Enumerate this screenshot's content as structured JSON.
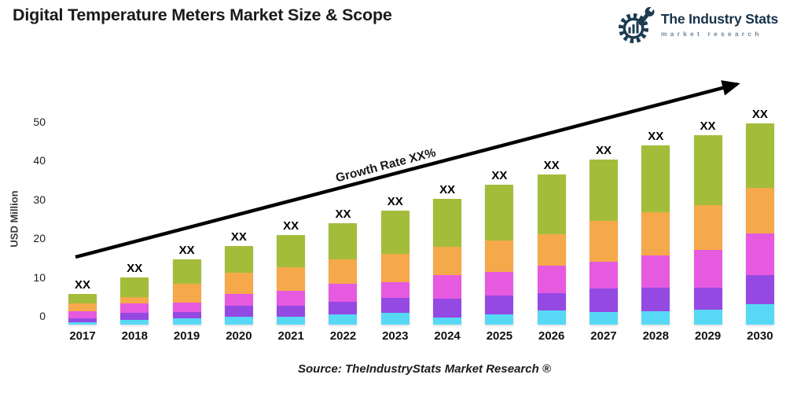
{
  "header": {
    "title": "Digital Temperature Meters Market Size & Scope",
    "logo": {
      "name": "The Industry Stats",
      "subtitle": "market research",
      "brand_color": "#1d3b50"
    }
  },
  "chart_data": {
    "type": "bar",
    "stacked": true,
    "title": "Digital Temperature Meters Market Size & Scope",
    "xlabel": "",
    "ylabel": "USD Million",
    "ylim": [
      0,
      50
    ],
    "y_ticks": [
      0,
      10,
      20,
      30,
      40,
      50
    ],
    "grid": false,
    "legend": "none",
    "categories": [
      "2017",
      "2018",
      "2019",
      "2020",
      "2021",
      "2022",
      "2023",
      "2024",
      "2025",
      "2026",
      "2027",
      "2028",
      "2029",
      "2030"
    ],
    "series": [
      {
        "name": "cyan-bottom",
        "color": "#57d9f5",
        "values": [
          0.7,
          1.2,
          1.7,
          2.1,
          2.1,
          2.6,
          3.1,
          1.9,
          2.7,
          3.7,
          3.2,
          3.5,
          3.8,
          5.3
        ]
      },
      {
        "name": "purple",
        "color": "#9549e3",
        "values": [
          1.0,
          1.9,
          1.5,
          2.7,
          2.8,
          3.2,
          3.7,
          4.7,
          4.9,
          4.4,
          6.1,
          6.1,
          5.7,
          7.5
        ]
      },
      {
        "name": "magenta",
        "color": "#e65ae0",
        "values": [
          1.7,
          2.3,
          2.4,
          3.2,
          3.9,
          4.7,
          4.2,
          6.1,
          6.0,
          7.1,
          6.9,
          8.2,
          9.8,
          10.7
        ]
      },
      {
        "name": "orange",
        "color": "#f5a94b",
        "values": [
          2.0,
          1.7,
          4.9,
          5.3,
          5.9,
          6.3,
          7.3,
          7.3,
          8.1,
          8.0,
          10.5,
          11.1,
          11.5,
          11.8
        ]
      },
      {
        "name": "green-top",
        "color": "#a3bd3b",
        "values": [
          2.4,
          5.1,
          6.3,
          7.0,
          8.3,
          9.3,
          11.1,
          12.4,
          14.4,
          15.4,
          15.9,
          17.2,
          17.9,
          16.5
        ]
      }
    ],
    "bar_labels": [
      "XX",
      "XX",
      "XX",
      "XX",
      "XX",
      "XX",
      "XX",
      "XX",
      "XX",
      "XX",
      "XX",
      "XX",
      "XX",
      "XX"
    ],
    "annotation": "Growth Rate XX%",
    "source": "Source: TheIndustryStats Market Research ®"
  }
}
